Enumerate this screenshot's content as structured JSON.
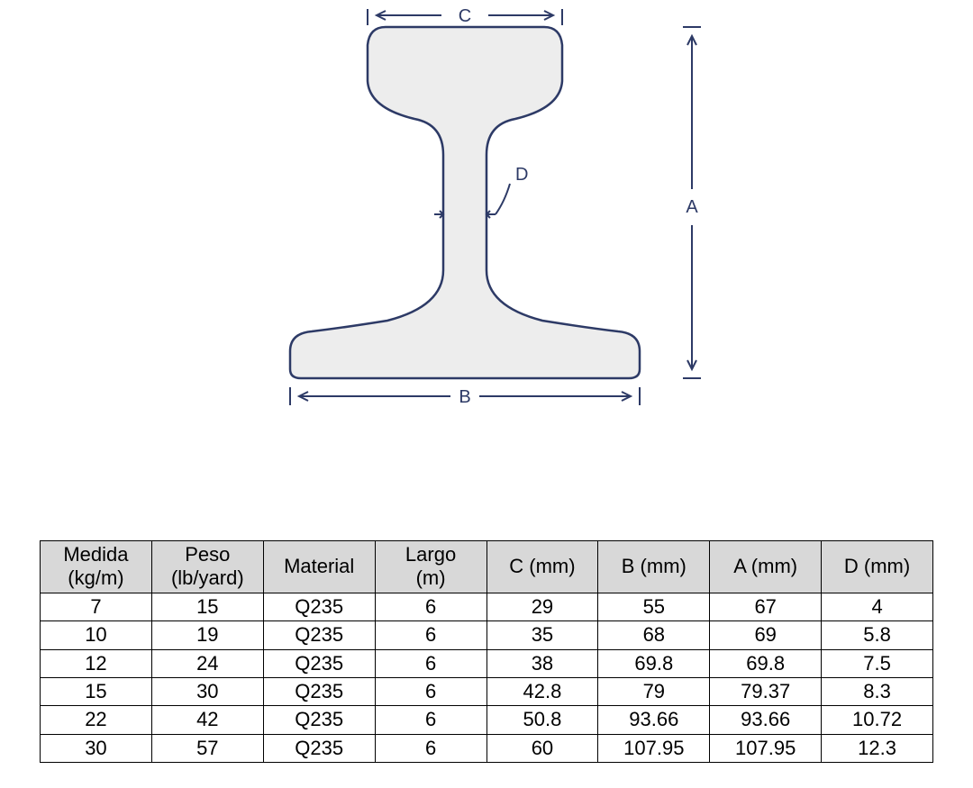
{
  "diagram": {
    "stroke": "#2d3a66",
    "fill": "#ededed",
    "label_font_size": 20,
    "label_color": "#2d3a66",
    "labels": {
      "top": "C",
      "right": "A",
      "bottom": "B",
      "web": "D"
    }
  },
  "table": {
    "header_bg": "#d8d8d8",
    "border_color": "#000000",
    "font_size": 22,
    "columns": [
      {
        "l1": "Medida",
        "l2": "(kg/m)"
      },
      {
        "l1": "Peso",
        "l2": "(lb/yard)"
      },
      {
        "l1": "Material",
        "l2": ""
      },
      {
        "l1": "Largo",
        "l2": "(m)"
      },
      {
        "l1": "C (mm)",
        "l2": ""
      },
      {
        "l1": "B (mm)",
        "l2": ""
      },
      {
        "l1": "A (mm)",
        "l2": ""
      },
      {
        "l1": "D (mm)",
        "l2": ""
      }
    ],
    "rows": [
      [
        "7",
        "15",
        "Q235",
        "6",
        "29",
        "55",
        "67",
        "4"
      ],
      [
        "10",
        "19",
        "Q235",
        "6",
        "35",
        "68",
        "69",
        "5.8"
      ],
      [
        "12",
        "24",
        "Q235",
        "6",
        "38",
        "69.8",
        "69.8",
        "7.5"
      ],
      [
        "15",
        "30",
        "Q235",
        "6",
        "42.8",
        "79",
        "79.37",
        "8.3"
      ],
      [
        "22",
        "42",
        "Q235",
        "6",
        "50.8",
        "93.66",
        "93.66",
        "10.72"
      ],
      [
        "30",
        "57",
        "Q235",
        "6",
        "60",
        "107.95",
        "107.95",
        "12.3"
      ]
    ]
  }
}
